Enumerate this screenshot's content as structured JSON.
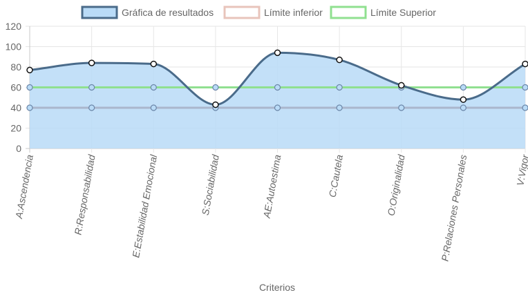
{
  "chart_data": {
    "type": "line",
    "categories": [
      "A:Ascendencia",
      "R:Responsabilidad",
      "E:Estabilidad Emocional",
      "S:Sociabilidad",
      "AE:Autoestima",
      "C:Cautela",
      "O:Originalidad",
      "P:Relaciones Personales",
      "V:Vigor"
    ],
    "series": [
      {
        "name": "Gráfica de resultados",
        "values": [
          77,
          84,
          83,
          43,
          94,
          87,
          62,
          48,
          83
        ],
        "color": "#4a6b8a",
        "fill": "#b9dbf7",
        "area": true
      },
      {
        "name": "Límite inferior",
        "values": [
          40,
          40,
          40,
          40,
          40,
          40,
          40,
          40,
          40
        ],
        "color": "#aab6cc",
        "legend_color": "#e8c4bb",
        "area": false
      },
      {
        "name": "Límite Superior",
        "values": [
          60,
          60,
          60,
          60,
          60,
          60,
          60,
          60,
          60
        ],
        "color": "#90e090",
        "area": false
      }
    ],
    "xlabel": "Criterios",
    "ylabel": "",
    "ylim": [
      0,
      120
    ],
    "yticks": [
      "0",
      "20",
      "40",
      "60",
      "80",
      "100",
      "120"
    ],
    "grid": true,
    "legend_position": "top"
  }
}
